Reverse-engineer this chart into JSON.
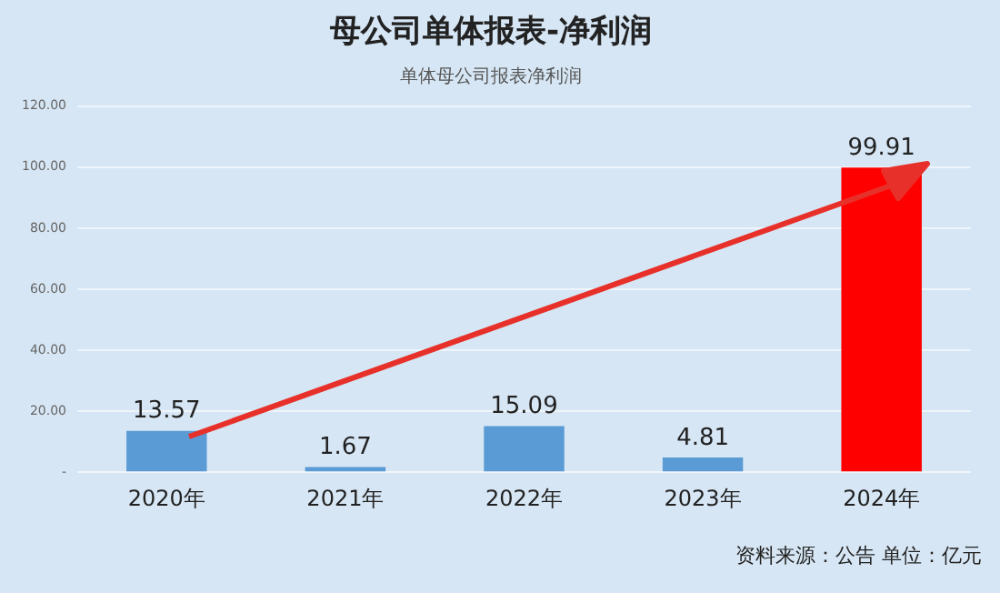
{
  "chart_data": {
    "type": "bar",
    "title": "母公司单体报表-净利润",
    "subtitle": "单体母公司报表净利润",
    "categories": [
      "2020年",
      "2021年",
      "2022年",
      "2023年",
      "2024年"
    ],
    "values": [
      13.57,
      1.67,
      15.09,
      4.81,
      99.91
    ],
    "colors": [
      "#5b9bd5",
      "#5b9bd5",
      "#5b9bd5",
      "#5b9bd5",
      "#ff0000"
    ],
    "data_labels": true,
    "ylim": [
      0,
      120
    ],
    "yticks": [
      {
        "value": 0,
        "label": "-"
      },
      {
        "value": 20,
        "label": "20.00"
      },
      {
        "value": 40,
        "label": "40.00"
      },
      {
        "value": 60,
        "label": "60.00"
      },
      {
        "value": 80,
        "label": "80.00"
      },
      {
        "value": 100,
        "label": "100.00"
      },
      {
        "value": 120,
        "label": "120.00"
      }
    ],
    "grid": "y",
    "annotations": [
      "资料来源：公告 单位：亿元"
    ]
  }
}
